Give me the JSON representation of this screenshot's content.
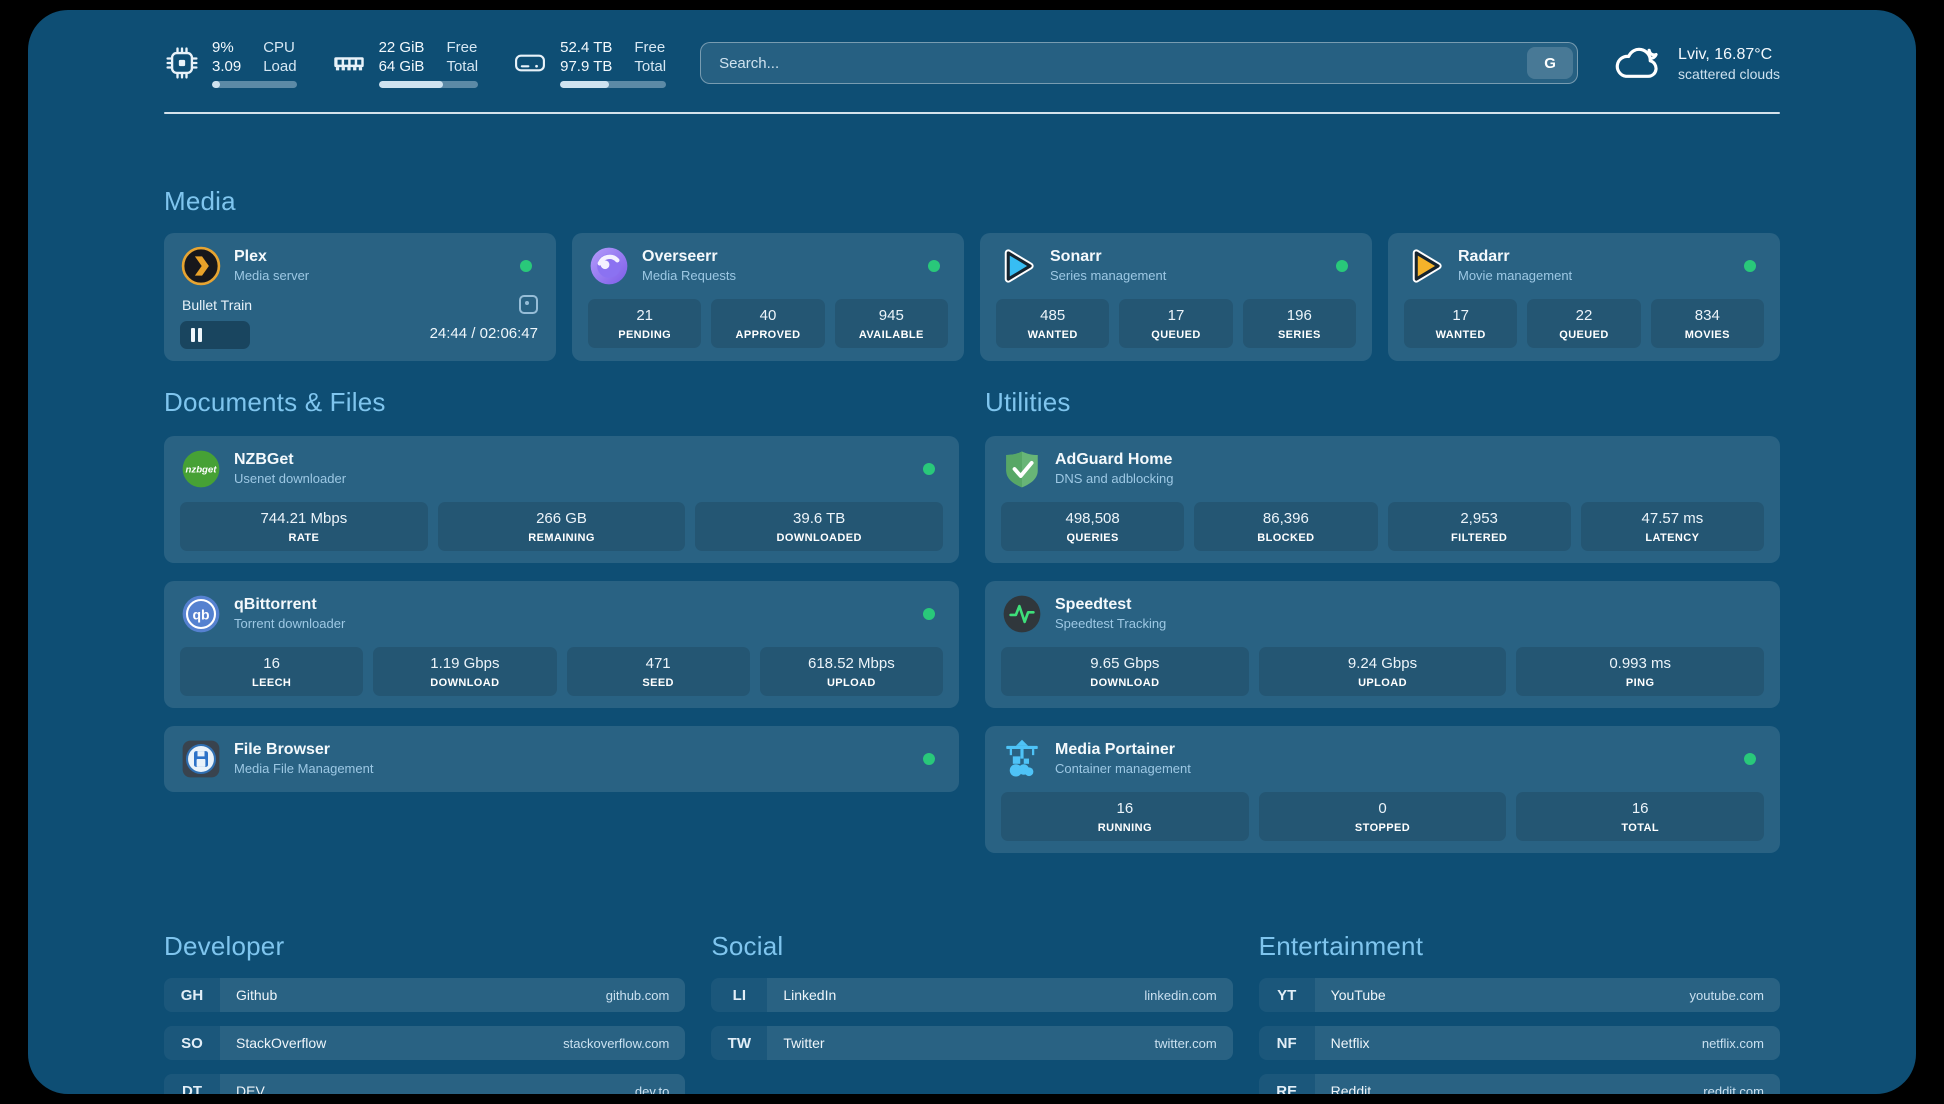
{
  "header": {
    "resources": [
      {
        "icon": "cpu-icon",
        "values": [
          "9%",
          "3.09"
        ],
        "labels": [
          "CPU",
          "Load"
        ],
        "progress_pct": 9
      },
      {
        "icon": "ram-icon",
        "values": [
          "22 GiB",
          "64 GiB"
        ],
        "labels": [
          "Free",
          "Total"
        ],
        "progress_pct": 65
      },
      {
        "icon": "disk-icon",
        "values": [
          "52.4 TB",
          "97.9 TB"
        ],
        "labels": [
          "Free",
          "Total"
        ],
        "progress_pct": 46
      }
    ],
    "search": {
      "placeholder": "Search...",
      "provider_button": "G"
    },
    "weather": {
      "summary": "Lviv, 16.87°C",
      "condition": "scattered clouds"
    }
  },
  "media": {
    "title": "Media",
    "plex": {
      "name": "Plex",
      "subtitle": "Media server",
      "now_playing": {
        "title": "Bullet Train",
        "time": "24:44 / 02:06:47",
        "progress_pct": 19.5
      }
    },
    "overseerr": {
      "name": "Overseerr",
      "subtitle": "Media Requests",
      "stats": [
        {
          "value": "21",
          "label": "PENDING"
        },
        {
          "value": "40",
          "label": "APPROVED"
        },
        {
          "value": "945",
          "label": "AVAILABLE"
        }
      ]
    },
    "sonarr": {
      "name": "Sonarr",
      "subtitle": "Series management",
      "stats": [
        {
          "value": "485",
          "label": "WANTED"
        },
        {
          "value": "17",
          "label": "QUEUED"
        },
        {
          "value": "196",
          "label": "SERIES"
        }
      ]
    },
    "radarr": {
      "name": "Radarr",
      "subtitle": "Movie management",
      "stats": [
        {
          "value": "17",
          "label": "WANTED"
        },
        {
          "value": "22",
          "label": "QUEUED"
        },
        {
          "value": "834",
          "label": "MOVIES"
        }
      ]
    }
  },
  "documents": {
    "title": "Documents & Files",
    "nzbget": {
      "name": "NZBGet",
      "subtitle": "Usenet downloader",
      "stats": [
        {
          "value": "744.21 Mbps",
          "label": "RATE"
        },
        {
          "value": "266 GB",
          "label": "REMAINING"
        },
        {
          "value": "39.6 TB",
          "label": "DOWNLOADED"
        }
      ]
    },
    "qbittorrent": {
      "name": "qBittorrent",
      "subtitle": "Torrent downloader",
      "stats": [
        {
          "value": "16",
          "label": "LEECH"
        },
        {
          "value": "1.19 Gbps",
          "label": "DOWNLOAD"
        },
        {
          "value": "471",
          "label": "SEED"
        },
        {
          "value": "618.52 Mbps",
          "label": "UPLOAD"
        }
      ]
    },
    "filebrowser": {
      "name": "File Browser",
      "subtitle": "Media File Management"
    }
  },
  "utilities": {
    "title": "Utilities",
    "adguard": {
      "name": "AdGuard Home",
      "subtitle": "DNS and adblocking",
      "stats": [
        {
          "value": "498,508",
          "label": "QUERIES"
        },
        {
          "value": "86,396",
          "label": "BLOCKED"
        },
        {
          "value": "2,953",
          "label": "FILTERED"
        },
        {
          "value": "47.57 ms",
          "label": "LATENCY"
        }
      ]
    },
    "speedtest": {
      "name": "Speedtest",
      "subtitle": "Speedtest Tracking",
      "stats": [
        {
          "value": "9.65 Gbps",
          "label": "DOWNLOAD"
        },
        {
          "value": "9.24 Gbps",
          "label": "UPLOAD"
        },
        {
          "value": "0.993 ms",
          "label": "PING"
        }
      ]
    },
    "portainer": {
      "name": "Media Portainer",
      "subtitle": "Container management",
      "stats": [
        {
          "value": "16",
          "label": "RUNNING"
        },
        {
          "value": "0",
          "label": "STOPPED"
        },
        {
          "value": "16",
          "label": "TOTAL"
        }
      ]
    }
  },
  "bookmarks": [
    {
      "title": "Developer",
      "items": [
        {
          "abbr": "GH",
          "name": "Github",
          "domain": "github.com"
        },
        {
          "abbr": "SO",
          "name": "StackOverflow",
          "domain": "stackoverflow.com"
        },
        {
          "abbr": "DT",
          "name": "DEV",
          "domain": "dev.to"
        }
      ]
    },
    {
      "title": "Social",
      "items": [
        {
          "abbr": "LI",
          "name": "LinkedIn",
          "domain": "linkedin.com"
        },
        {
          "abbr": "TW",
          "name": "Twitter",
          "domain": "twitter.com"
        }
      ]
    },
    {
      "title": "Entertainment",
      "items": [
        {
          "abbr": "YT",
          "name": "YouTube",
          "domain": "youtube.com"
        },
        {
          "abbr": "NF",
          "name": "Netflix",
          "domain": "netflix.com"
        },
        {
          "abbr": "RE",
          "name": "Reddit",
          "domain": "reddit.com"
        }
      ]
    }
  ],
  "colors": {
    "background": "#0e4e74",
    "status_green": "#29c87a",
    "section_title": "#7fc5ee"
  }
}
